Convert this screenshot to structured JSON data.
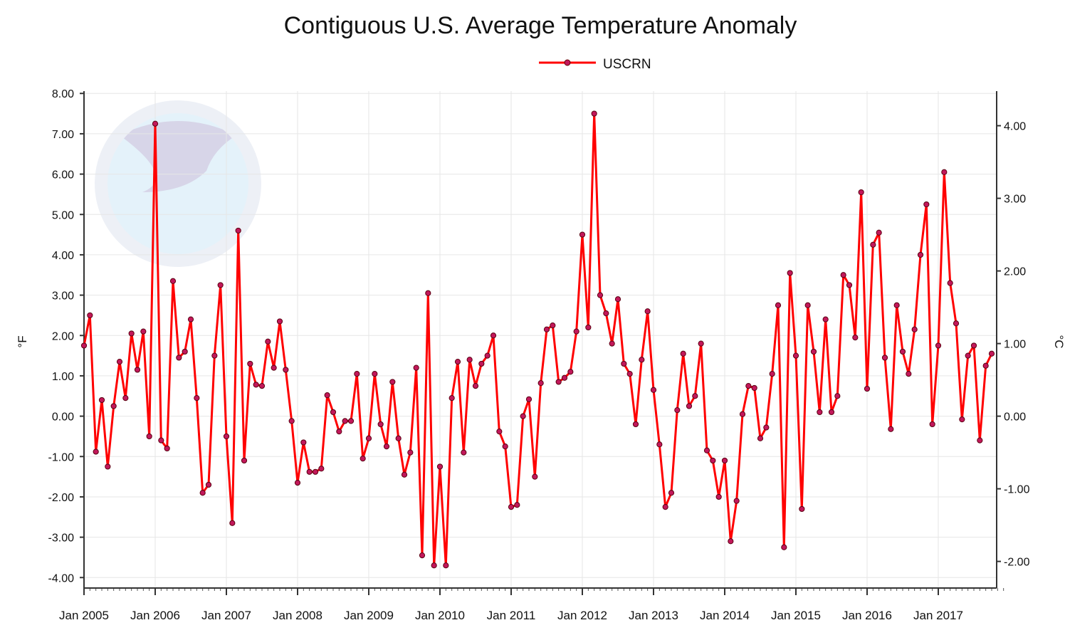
{
  "chart_data": {
    "type": "line",
    "title": "Contiguous U.S. Average Temperature Anomaly",
    "ylabel": "°F",
    "y2label": "°C",
    "ylim": [
      -4,
      8
    ],
    "y2lim": [
      -2.22,
      4.44
    ],
    "yticks": [
      "8.00",
      "7.00",
      "6.00",
      "5.00",
      "4.00",
      "3.00",
      "2.00",
      "1.00",
      "0.00",
      "-1.00",
      "-2.00",
      "-3.00",
      "-4.00"
    ],
    "y2ticks": [
      "4.00",
      "3.00",
      "2.00",
      "1.00",
      "0.00",
      "-1.00",
      "-2.00"
    ],
    "xticks": [
      "Jan 2005",
      "Jan 2006",
      "Jan 2007",
      "Jan 2008",
      "Jan 2009",
      "Jan 2010",
      "Jan 2011",
      "Jan 2012",
      "Jan 2013",
      "Jan 2014",
      "Jan 2015",
      "Jan 2016",
      "Jan 2017"
    ],
    "grid": true,
    "legend_position": "top-center",
    "watermark": "NOAA — National Oceanic and Atmospheric Administration, U.S. Department of Commerce",
    "x_start": "Jan 2005",
    "x_end": "Oct 2017",
    "series": [
      {
        "name": "USCRN",
        "color": "#ff0000",
        "marker_color": "#c2185b",
        "values": [
          1.75,
          2.5,
          -0.88,
          0.4,
          -1.25,
          0.25,
          1.35,
          0.45,
          2.05,
          1.15,
          2.1,
          -0.5,
          7.25,
          -0.6,
          -0.8,
          3.35,
          1.45,
          1.6,
          2.4,
          0.45,
          -1.9,
          -1.7,
          1.5,
          3.25,
          -0.5,
          -2.65,
          4.6,
          -1.1,
          1.3,
          0.78,
          0.75,
          1.85,
          1.2,
          2.35,
          1.15,
          -0.12,
          -1.65,
          -0.65,
          -1.38,
          -1.38,
          -1.3,
          0.52,
          0.1,
          -0.38,
          -0.12,
          -0.12,
          1.05,
          -1.05,
          -0.55,
          1.05,
          -0.2,
          -0.75,
          0.85,
          -0.55,
          -1.45,
          -0.9,
          1.2,
          -3.45,
          3.05,
          -3.7,
          -1.25,
          -3.7,
          0.45,
          1.35,
          -0.9,
          1.4,
          0.75,
          1.3,
          1.5,
          2.0,
          -0.38,
          -0.75,
          -2.25,
          -2.2,
          0.0,
          0.42,
          -1.5,
          0.82,
          2.15,
          2.25,
          0.85,
          0.95,
          1.1,
          2.1,
          4.5,
          2.2,
          7.5,
          3.0,
          2.55,
          1.8,
          2.9,
          1.3,
          1.05,
          -0.2,
          1.4,
          2.6,
          0.65,
          -0.7,
          -2.25,
          -1.9,
          0.15,
          1.55,
          0.25,
          0.5,
          1.8,
          -0.85,
          -1.1,
          -2.0,
          -1.1,
          -3.1,
          -2.1,
          0.05,
          0.75,
          0.7,
          -0.55,
          -0.28,
          1.05,
          2.75,
          -3.25,
          3.55,
          1.5,
          -2.3,
          2.75,
          1.6,
          0.1,
          2.4,
          0.1,
          0.5,
          3.5,
          3.25,
          1.95,
          5.55,
          0.68,
          4.25,
          4.55,
          1.45,
          -0.32,
          2.75,
          1.6,
          1.05,
          2.15,
          4.0,
          5.25,
          -0.2,
          1.75,
          6.05,
          3.3,
          2.3,
          -0.08,
          1.5,
          1.75,
          -0.6,
          1.25,
          1.55
        ]
      }
    ]
  }
}
